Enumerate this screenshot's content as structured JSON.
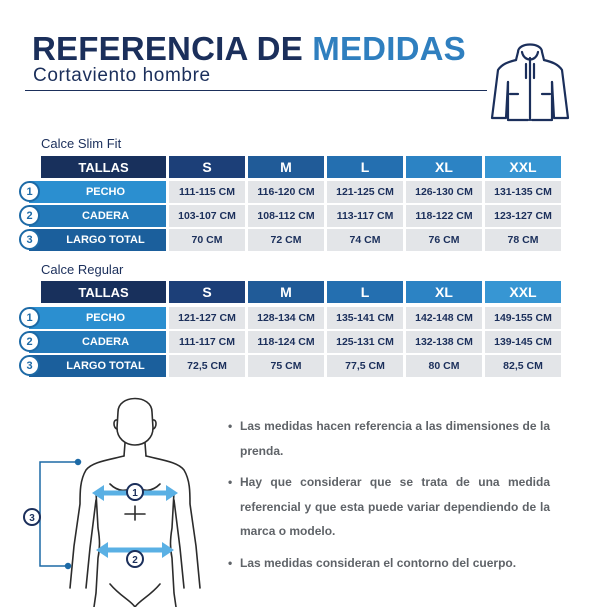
{
  "header": {
    "title_part1": "REFERENCIA DE",
    "title_part2": "MEDIDAS",
    "subtitle": "Cortaviento hombre",
    "icon": "jacket-icon"
  },
  "tables": [
    {
      "label": "Calce Slim Fit",
      "corner": "TALLAS",
      "sizes": [
        "S",
        "M",
        "L",
        "XL",
        "XXL"
      ],
      "rows": [
        {
          "num": "1",
          "label": "PECHO",
          "values": [
            "111-115 CM",
            "116-120 CM",
            "121-125 CM",
            "126-130 CM",
            "131-135 CM"
          ]
        },
        {
          "num": "2",
          "label": "CADERA",
          "values": [
            "103-107 CM",
            "108-112 CM",
            "113-117 CM",
            "118-122 CM",
            "123-127 CM"
          ]
        },
        {
          "num": "3",
          "label": "LARGO TOTAL",
          "values": [
            "70 CM",
            "72 CM",
            "74 CM",
            "76 CM",
            "78 CM"
          ]
        }
      ]
    },
    {
      "label": "Calce Regular",
      "corner": "TALLAS",
      "sizes": [
        "S",
        "M",
        "L",
        "XL",
        "XXL"
      ],
      "rows": [
        {
          "num": "1",
          "label": "PECHO",
          "values": [
            "121-127 CM",
            "128-134 CM",
            "135-141 CM",
            "142-148 CM",
            "149-155 CM"
          ]
        },
        {
          "num": "2",
          "label": "CADERA",
          "values": [
            "111-117 CM",
            "118-124 CM",
            "125-131 CM",
            "132-138 CM",
            "139-145 CM"
          ]
        },
        {
          "num": "3",
          "label": "LARGO TOTAL",
          "values": [
            "72,5 CM",
            "75 CM",
            "77,5 CM",
            "80 CM",
            "82,5 CM"
          ]
        }
      ]
    }
  ],
  "figure": {
    "markers": [
      "1",
      "2",
      "3"
    ]
  },
  "notes": [
    "Las medidas hacen referencia a las dimensiones de la prenda.",
    "Hay que considerar que se trata de una medida referencial y que esta puede variar dependiendo de la marca o modelo.",
    "Las medidas consideran el contorno del cuerpo."
  ],
  "colors": {
    "navy": "#1b2f5b",
    "tallas_bg": "#18305c",
    "size_header_gradient": [
      "#1c3f78",
      "#205b98",
      "#246fb0",
      "#2c83c4",
      "#3796d3"
    ],
    "row_label_bg": [
      "#2b8fd0",
      "#2379b9",
      "#1b5f9c"
    ],
    "value_bg": "#e3e5e8",
    "accent_blue": "#2f7fbf",
    "note_text": "#5f6368"
  }
}
